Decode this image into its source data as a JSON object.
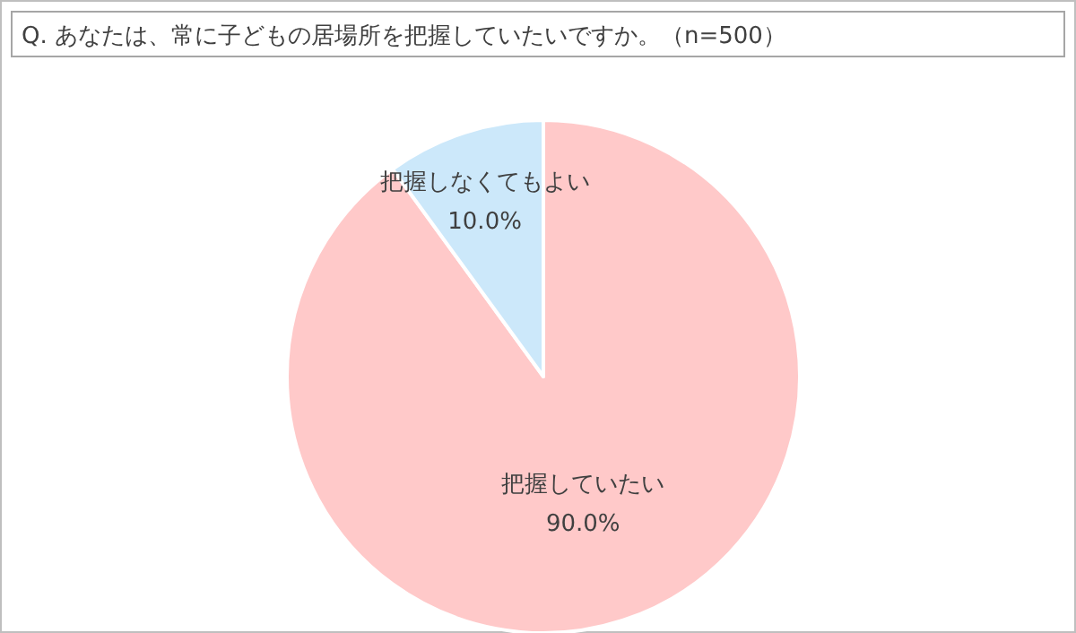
{
  "chart_data": {
    "type": "pie",
    "title": "Q. あなたは、常に子どもの居場所を把握していたいですか。（n=500）",
    "categories": [
      "把握していたい",
      "把握しなくてもよい"
    ],
    "values": [
      90,
      10
    ],
    "colors": [
      "#ffc9c9",
      "#cce8fa"
    ],
    "value_labels": [
      "90.0%",
      "10.0%"
    ]
  }
}
